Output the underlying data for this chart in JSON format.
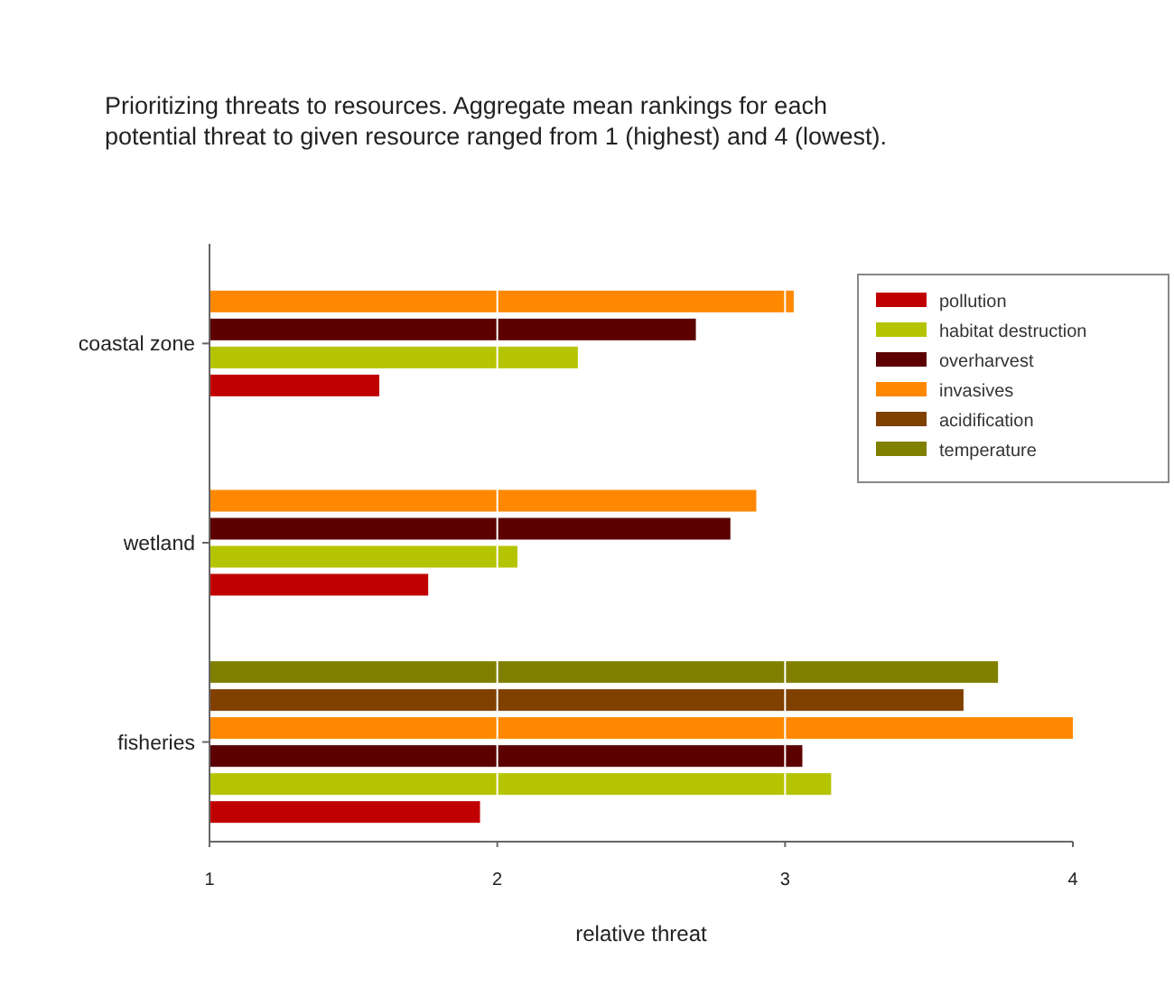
{
  "chart_data": {
    "type": "bar",
    "orientation": "horizontal",
    "title": "Prioritizing threats to resources. Aggregate mean rankings for each\npotential threat to given resource ranged from 1 (highest) and 4 (lowest).",
    "xlabel": "relative threat",
    "categories": [
      "coastal zone",
      "wetland",
      "fisheries"
    ],
    "series": [
      {
        "name": "pollution",
        "color": "#c00000",
        "values": [
          1.59,
          1.76,
          1.94
        ]
      },
      {
        "name": "habitat destruction",
        "color": "#b5c400",
        "values": [
          2.28,
          2.07,
          3.16
        ]
      },
      {
        "name": "overharvest",
        "color": "#5c0000",
        "values": [
          2.69,
          2.81,
          3.06
        ]
      },
      {
        "name": "invasives",
        "color": "#ff8800",
        "values": [
          3.03,
          2.9,
          4.0
        ]
      },
      {
        "name": "acidification",
        "color": "#7f4000",
        "values": [
          null,
          null,
          3.62
        ]
      },
      {
        "name": "temperature",
        "color": "#808000",
        "values": [
          null,
          null,
          3.74
        ]
      }
    ],
    "xlim": [
      1,
      4
    ],
    "xticks": [
      1,
      2,
      3,
      4
    ],
    "grid": "x",
    "legend": "top right"
  }
}
